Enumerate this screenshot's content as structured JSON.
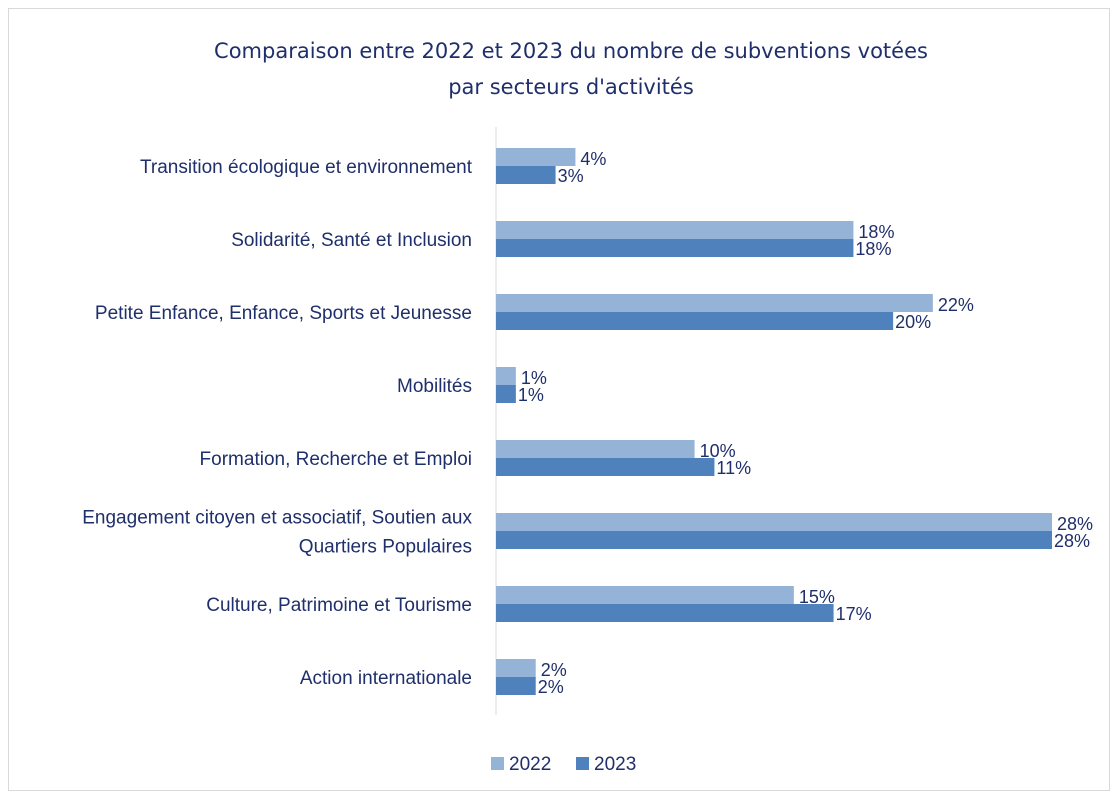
{
  "chart_data": {
    "type": "bar",
    "orientation": "horizontal",
    "title": "Comparaison entre 2022 et 2023 du nombre de subventions votées par secteurs d'activités",
    "title_lines": [
      "Comparaison entre 2022 et 2023 du nombre de subventions votées",
      "par secteurs d'activités"
    ],
    "categories": [
      [
        "Transition écologique et environnement"
      ],
      [
        "Solidarité, Santé et Inclusion"
      ],
      [
        "Petite Enfance, Enfance, Sports et Jeunesse"
      ],
      [
        "Mobilités"
      ],
      [
        "Formation, Recherche et Emploi"
      ],
      [
        "Engagement citoyen et associatif, Soutien aux",
        "Quartiers Populaires"
      ],
      [
        "Culture, Patrimoine et Tourisme"
      ],
      [
        "Action internationale"
      ]
    ],
    "series": [
      {
        "name": "2022",
        "color": "#95b3d7",
        "values": [
          4,
          18,
          22,
          1,
          10,
          28,
          15,
          2
        ],
        "labels": [
          "4%",
          "18%",
          "22%",
          "1%",
          "10%",
          "28%",
          "15%",
          "2%"
        ]
      },
      {
        "name": "2023",
        "color": "#4f81bd",
        "values": [
          3,
          18,
          20,
          1,
          11,
          28,
          17,
          2
        ],
        "labels": [
          "3%",
          "18%",
          "20%",
          "1%",
          "11%",
          "28%",
          "17%",
          "2%"
        ]
      }
    ],
    "value_unit": "%",
    "xlim": [
      0,
      28
    ],
    "grid": false,
    "legend_position": "bottom",
    "axis_color": "#d9d9d9",
    "text_color": "#1f2f6b"
  }
}
